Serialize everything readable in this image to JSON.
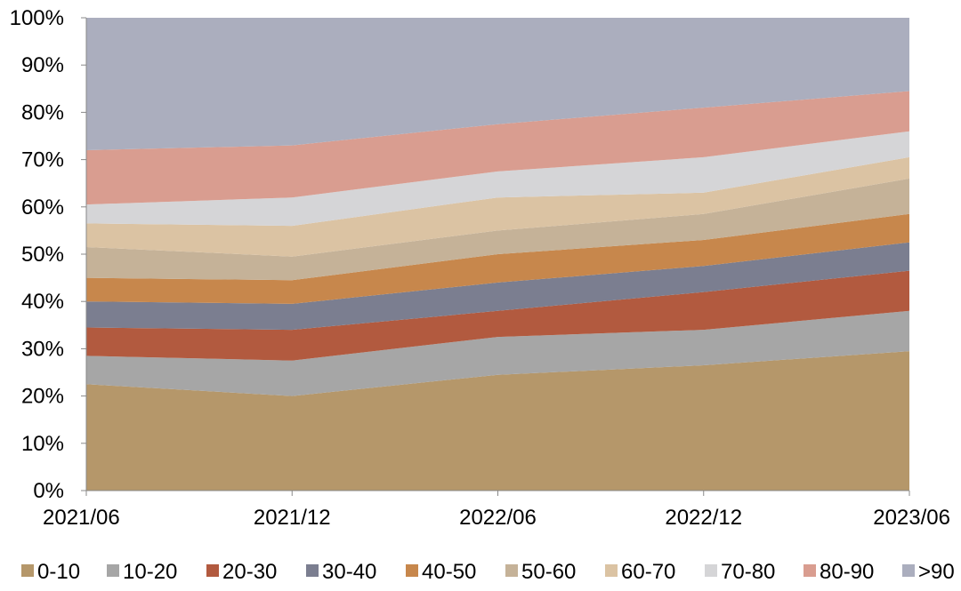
{
  "chart_data": {
    "type": "area",
    "stacked": true,
    "title": "",
    "xlabel": "",
    "ylabel": "",
    "categories": [
      "2021/06",
      "2021/12",
      "2022/06",
      "2022/12",
      "2023/06"
    ],
    "ylim": [
      0,
      100
    ],
    "yticks": [
      "0%",
      "10%",
      "20%",
      "30%",
      "40%",
      "50%",
      "60%",
      "70%",
      "80%",
      "90%",
      "100%"
    ],
    "grid": false,
    "legend_position": "bottom",
    "series": [
      {
        "name": "0-10",
        "color": "#b5976a",
        "values": [
          22.5,
          20.0,
          24.5,
          26.5,
          29.5
        ]
      },
      {
        "name": "10-20",
        "color": "#a6a6a6",
        "values": [
          6.0,
          7.5,
          8.0,
          7.5,
          8.5
        ]
      },
      {
        "name": "20-30",
        "color": "#b25a3f",
        "values": [
          6.0,
          6.5,
          5.5,
          8.0,
          8.5
        ]
      },
      {
        "name": "30-40",
        "color": "#7b7e90",
        "values": [
          5.5,
          5.5,
          6.0,
          5.5,
          6.0
        ]
      },
      {
        "name": "40-50",
        "color": "#c7874c",
        "values": [
          5.0,
          5.0,
          6.0,
          5.5,
          6.0
        ]
      },
      {
        "name": "50-60",
        "color": "#c5b298",
        "values": [
          6.5,
          5.0,
          5.0,
          5.5,
          7.5
        ]
      },
      {
        "name": "60-70",
        "color": "#dbc3a3",
        "values": [
          5.0,
          6.5,
          7.0,
          4.5,
          4.5
        ]
      },
      {
        "name": "70-80",
        "color": "#d5d5d7",
        "values": [
          4.0,
          6.0,
          5.5,
          7.5,
          5.5
        ]
      },
      {
        "name": "80-90",
        "color": "#d99d90",
        "values": [
          11.5,
          11.0,
          10.0,
          10.5,
          8.5
        ]
      },
      {
        "name": ">90",
        "color": "#abaebe",
        "values": [
          28.0,
          27.0,
          22.5,
          19.0,
          15.5
        ]
      }
    ]
  }
}
